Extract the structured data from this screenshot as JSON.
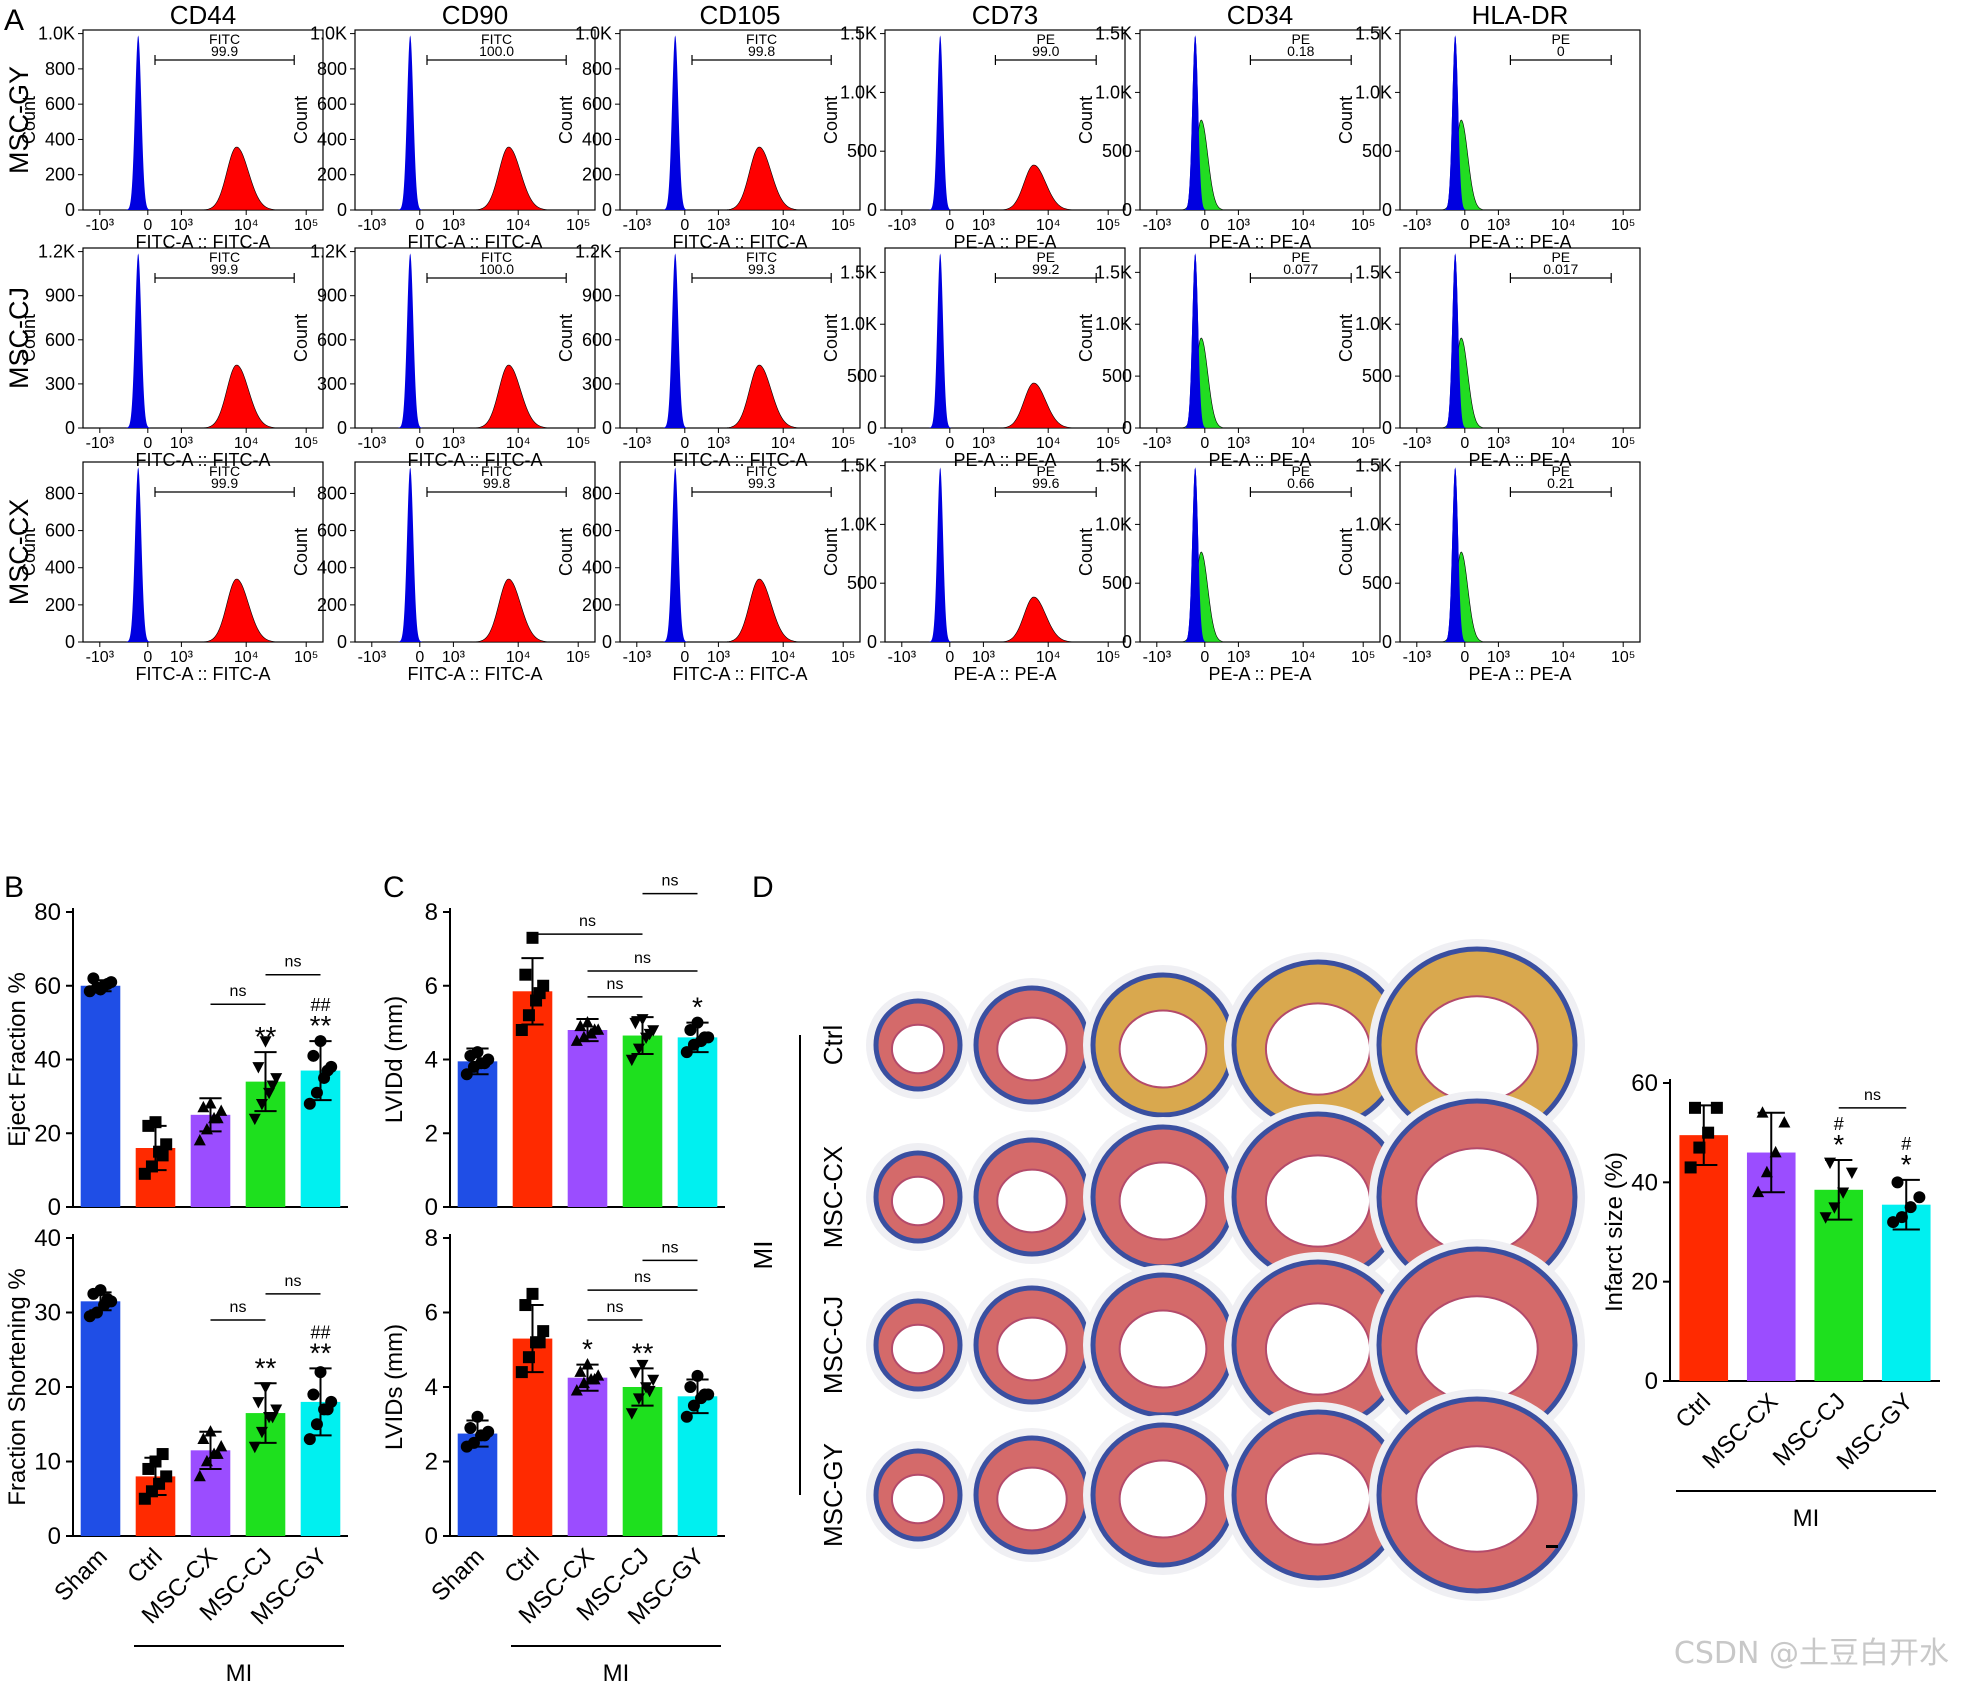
{
  "panels": {
    "A": "A",
    "B": "B",
    "C": "C",
    "D": "D"
  },
  "watermark": "CSDN @土豆白开水",
  "chart_data": [
    {
      "type": "histogram-grid",
      "panel": "A",
      "columns": [
        "CD44",
        "CD90",
        "CD105",
        "CD73",
        "CD34",
        "HLA-DR"
      ],
      "rows": [
        "MSC-GY",
        "MSC-CJ",
        "MSC-CX"
      ],
      "ylabel": "Count",
      "x_ticks": [
        "-10³",
        "0",
        "10³",
        "10⁴",
        "10⁵"
      ],
      "colors": {
        "control": "#0000e0",
        "fitc": "#ff0000",
        "pe_high": "#ff0000",
        "pe_low": "#22dd22"
      },
      "cells": [
        [
          {
            "xlabel": "FITC-A :: FITC-A",
            "gate_label": "FITC",
            "percent": "99.9",
            "y_ticks": [
              "0",
              "200",
              "400",
              "600",
              "800",
              "1.0K"
            ],
            "ymax": 1000,
            "pos": true
          },
          {
            "xlabel": "FITC-A :: FITC-A",
            "gate_label": "FITC",
            "percent": "100.0",
            "y_ticks": [
              "0",
              "200",
              "400",
              "600",
              "800",
              "1.0K"
            ],
            "ymax": 1000,
            "pos": true
          },
          {
            "xlabel": "FITC-A :: FITC-A",
            "gate_label": "FITC",
            "percent": "99.8",
            "y_ticks": [
              "0",
              "200",
              "400",
              "600",
              "800",
              "1.0K"
            ],
            "ymax": 1000,
            "pos": true
          },
          {
            "xlabel": "PE-A :: PE-A",
            "gate_label": "PE",
            "percent": "99.0",
            "y_ticks": [
              "0",
              "500",
              "1.0K",
              "1.5K"
            ],
            "ymax": 1500,
            "pos": true
          },
          {
            "xlabel": "PE-A :: PE-A",
            "gate_label": "PE",
            "percent": "0.18",
            "y_ticks": [
              "0",
              "500",
              "1.0K",
              "1.5K"
            ],
            "ymax": 1500,
            "pos": false
          },
          {
            "xlabel": "PE-A :: PE-A",
            "gate_label": "PE",
            "percent": "0",
            "y_ticks": [
              "0",
              "500",
              "1.0K",
              "1.5K"
            ],
            "ymax": 1500,
            "pos": false
          }
        ],
        [
          {
            "xlabel": "FITC-A :: FITC-A",
            "gate_label": "FITC",
            "percent": "99.9",
            "y_ticks": [
              "0",
              "300",
              "600",
              "900",
              "1.2K"
            ],
            "ymax": 1200,
            "pos": true
          },
          {
            "xlabel": "FITC-A :: FITC-A",
            "gate_label": "FITC",
            "percent": "100.0",
            "y_ticks": [
              "0",
              "300",
              "600",
              "900",
              "1.2K"
            ],
            "ymax": 1200,
            "pos": true
          },
          {
            "xlabel": "FITC-A :: FITC-A",
            "gate_label": "FITC",
            "percent": "99.3",
            "y_ticks": [
              "0",
              "300",
              "600",
              "900",
              "1.2K"
            ],
            "ymax": 1200,
            "pos": true
          },
          {
            "xlabel": "PE-A :: PE-A",
            "gate_label": "PE",
            "percent": "99.2",
            "y_ticks": [
              "0",
              "500",
              "1.0K",
              "1.5K"
            ],
            "ymax": 1700,
            "pos": true
          },
          {
            "xlabel": "PE-A :: PE-A",
            "gate_label": "PE",
            "percent": "0.077",
            "y_ticks": [
              "0",
              "500",
              "1.0K",
              "1.5K"
            ],
            "ymax": 1700,
            "pos": false
          },
          {
            "xlabel": "PE-A :: PE-A",
            "gate_label": "PE",
            "percent": "0.017",
            "y_ticks": [
              "0",
              "500",
              "1.0K",
              "1.5K"
            ],
            "ymax": 1700,
            "pos": false
          }
        ],
        [
          {
            "xlabel": "FITC-A :: FITC-A",
            "gate_label": "FITC",
            "percent": "99.9",
            "y_ticks": [
              "0",
              "200",
              "400",
              "600",
              "800"
            ],
            "ymax": 950,
            "pos": true
          },
          {
            "xlabel": "FITC-A :: FITC-A",
            "gate_label": "FITC",
            "percent": "99.8",
            "y_ticks": [
              "0",
              "200",
              "400",
              "600",
              "800"
            ],
            "ymax": 950,
            "pos": true
          },
          {
            "xlabel": "FITC-A :: FITC-A",
            "gate_label": "FITC",
            "percent": "99.3",
            "y_ticks": [
              "0",
              "200",
              "400",
              "600",
              "800"
            ],
            "ymax": 950,
            "pos": true
          },
          {
            "xlabel": "PE-A :: PE-A",
            "gate_label": "PE",
            "percent": "99.6",
            "y_ticks": [
              "0",
              "500",
              "1.0K",
              "1.5K"
            ],
            "ymax": 1500,
            "pos": true
          },
          {
            "xlabel": "PE-A :: PE-A",
            "gate_label": "PE",
            "percent": "0.66",
            "y_ticks": [
              "0",
              "500",
              "1.0K",
              "1.5K"
            ],
            "ymax": 1500,
            "pos": false
          },
          {
            "xlabel": "PE-A :: PE-A",
            "gate_label": "PE",
            "percent": "0.21",
            "y_ticks": [
              "0",
              "500",
              "1.0K",
              "1.5K"
            ],
            "ymax": 1500,
            "pos": false
          }
        ]
      ]
    },
    {
      "type": "bar",
      "panel": "B",
      "categories": [
        "Sham",
        "Ctrl",
        "MSC-CX",
        "MSC-CJ",
        "MSC-GY"
      ],
      "group_label": "MI",
      "colors": [
        "#1f4ee6",
        "#ff2a00",
        "#9b4dff",
        "#1ee01e",
        "#00f0f0"
      ],
      "markers": [
        "circle",
        "square",
        "triangle",
        "triangle-down",
        "circle"
      ],
      "charts": [
        {
          "ylabel": "Eject Fraction %",
          "ylim": [
            0,
            80
          ],
          "y_ticks": [
            0,
            20,
            40,
            60,
            80
          ],
          "values": [
            60,
            16,
            25,
            34,
            37
          ],
          "errors": [
            1.5,
            6,
            4.5,
            8,
            8
          ],
          "points": [
            [
              58.5,
              59.5,
              60,
              61,
              62,
              59,
              60.5
            ],
            [
              9,
              11,
              15,
              17,
              22,
              23,
              14
            ],
            [
              18,
              21,
              24,
              26,
              27,
              28,
              24
            ],
            [
              24,
              28,
              31,
              35,
              38,
              45,
              33
            ],
            [
              28,
              31,
              35,
              38,
              41,
              45,
              37
            ]
          ],
          "sig": [
            "",
            "",
            "",
            "**",
            "**"
          ],
          "sig2": [
            "",
            "",
            "",
            "",
            "##"
          ],
          "ns": [
            {
              "from": 2,
              "to": 3,
              "label": "ns",
              "y": 55
            },
            {
              "from": 3,
              "to": 4,
              "label": "ns",
              "y": 63
            }
          ]
        },
        {
          "ylabel": "Fraction Shortening %",
          "ylim": [
            0,
            40
          ],
          "y_ticks": [
            0,
            10,
            20,
            30,
            40
          ],
          "values": [
            31.5,
            8,
            11.5,
            16.5,
            18
          ],
          "errors": [
            1.2,
            2.5,
            2.5,
            4,
            4.5
          ],
          "points": [
            [
              29.5,
              30,
              31,
              31.5,
              32.5,
              33,
              31.8
            ],
            [
              5,
              6,
              7,
              8,
              9,
              10,
              11
            ],
            [
              8,
              10,
              11,
              12,
              13,
              14,
              11
            ],
            [
              12,
              14,
              16,
              17,
              18,
              20,
              16
            ],
            [
              13,
              15,
              17,
              18,
              19,
              22,
              17
            ]
          ],
          "sig": [
            "",
            "",
            "",
            "**",
            "**"
          ],
          "sig2": [
            "",
            "",
            "",
            "",
            "##"
          ],
          "ns": [
            {
              "from": 2,
              "to": 3,
              "label": "ns",
              "y": 29
            },
            {
              "from": 3,
              "to": 4,
              "label": "ns",
              "y": 32.5
            }
          ]
        }
      ]
    },
    {
      "type": "bar",
      "panel": "C",
      "categories": [
        "Sham",
        "Ctrl",
        "MSC-CX",
        "MSC-CJ",
        "MSC-GY"
      ],
      "group_label": "MI",
      "colors": [
        "#1f4ee6",
        "#ff2a00",
        "#9b4dff",
        "#1ee01e",
        "#00f0f0"
      ],
      "markers": [
        "circle",
        "square",
        "triangle",
        "triangle-down",
        "circle"
      ],
      "charts": [
        {
          "ylabel": "LVIDd (mm)",
          "ylim": [
            0,
            8
          ],
          "y_ticks": [
            0,
            2,
            4,
            6,
            8
          ],
          "values": [
            3.95,
            5.85,
            4.8,
            4.65,
            4.6
          ],
          "errors": [
            0.35,
            0.9,
            0.3,
            0.5,
            0.4
          ],
          "points": [
            [
              3.6,
              3.8,
              3.9,
              4.0,
              4.1,
              4.2,
              3.9
            ],
            [
              4.8,
              5.2,
              5.6,
              6.0,
              6.3,
              7.3,
              5.8
            ],
            [
              4.5,
              4.6,
              4.7,
              4.8,
              4.9,
              5.0,
              4.8
            ],
            [
              4.0,
              4.3,
              4.6,
              4.8,
              5.0,
              5.1,
              4.7
            ],
            [
              4.2,
              4.4,
              4.5,
              4.6,
              4.8,
              5.0,
              4.6
            ]
          ],
          "sig": [
            "",
            "",
            "",
            "",
            "*"
          ],
          "sig2": [
            "",
            "",
            "",
            "",
            ""
          ],
          "ns": [
            {
              "from": 1,
              "to": 3,
              "label": "ns",
              "y": 7.4
            },
            {
              "from": 2,
              "to": 4,
              "label": "ns",
              "y": 6.4
            },
            {
              "from": 2,
              "to": 3,
              "label": "ns",
              "y": 5.7
            },
            {
              "from": 3,
              "to": 4,
              "label": "ns",
              "y": 8.5
            }
          ]
        },
        {
          "ylabel": "LVIDs (mm)",
          "ylim": [
            0,
            8
          ],
          "y_ticks": [
            0,
            2,
            4,
            6,
            8
          ],
          "values": [
            2.75,
            5.3,
            4.25,
            4.0,
            3.75
          ],
          "errors": [
            0.35,
            0.9,
            0.35,
            0.5,
            0.45
          ],
          "points": [
            [
              2.4,
              2.5,
              2.7,
              2.8,
              2.9,
              3.2,
              2.7
            ],
            [
              4.4,
              4.8,
              5.2,
              5.5,
              6.2,
              6.5,
              5.2
            ],
            [
              3.9,
              4.1,
              4.2,
              4.3,
              4.4,
              4.6,
              4.2
            ],
            [
              3.3,
              3.7,
              4.0,
              4.2,
              4.4,
              4.6,
              3.9
            ],
            [
              3.2,
              3.5,
              3.7,
              3.8,
              4.0,
              4.3,
              3.8
            ]
          ],
          "sig": [
            "",
            "",
            "*",
            "**",
            ""
          ],
          "sig2": [
            "",
            "",
            "",
            "",
            ""
          ],
          "ns": [
            {
              "from": 2,
              "to": 3,
              "label": "ns",
              "y": 5.8
            },
            {
              "from": 2,
              "to": 4,
              "label": "ns",
              "y": 6.6
            },
            {
              "from": 3,
              "to": 4,
              "label": "ns",
              "y": 7.4
            }
          ]
        }
      ]
    },
    {
      "type": "bar",
      "panel": "D",
      "rows": [
        "Ctrl",
        "MSC-CX",
        "MSC-CJ",
        "MSC-GY"
      ],
      "row_group_label": "MI",
      "categories": [
        "Ctrl",
        "MSC-CX",
        "MSC-CJ",
        "MSC-GY"
      ],
      "group_label": "MI",
      "colors": [
        "#ff2a00",
        "#9b4dff",
        "#1ee01e",
        "#00f0f0"
      ],
      "markers": [
        "square",
        "triangle",
        "triangle-down",
        "circle"
      ],
      "ylabel": "Infarct size (%)",
      "ylim": [
        0,
        60
      ],
      "y_ticks": [
        0,
        20,
        40,
        60
      ],
      "values": [
        49.5,
        46,
        38.5,
        35.5
      ],
      "errors": [
        6,
        8,
        6,
        5
      ],
      "points": [
        [
          43,
          47,
          50,
          55,
          55
        ],
        [
          38,
          42,
          46,
          52,
          54
        ],
        [
          33,
          35,
          38,
          42,
          44
        ],
        [
          32,
          33,
          35,
          37,
          40
        ]
      ],
      "sig": [
        "",
        "",
        "*",
        "*"
      ],
      "sig2": [
        "",
        "",
        "#",
        "#"
      ],
      "ns": [
        {
          "from": 2,
          "to": 3,
          "label": "ns",
          "y": 55
        }
      ]
    }
  ]
}
